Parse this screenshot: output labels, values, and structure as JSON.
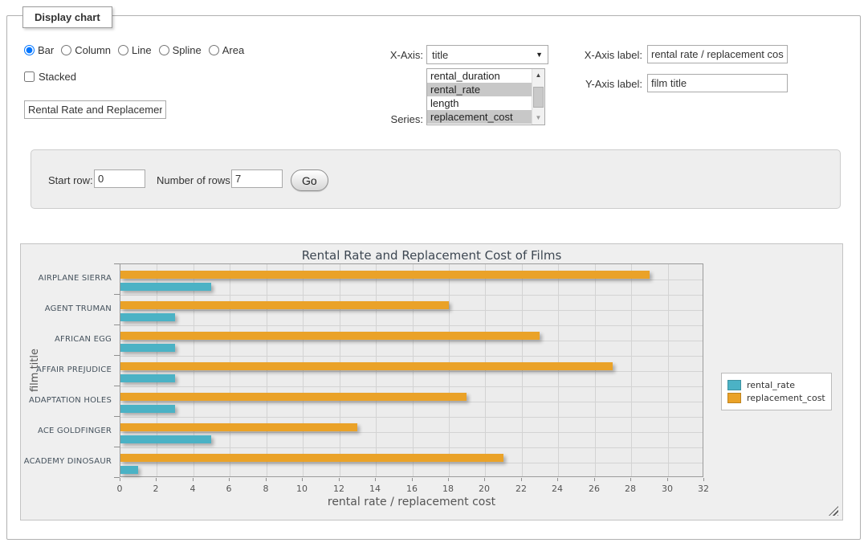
{
  "fieldset": {
    "legend": "Display chart"
  },
  "controls": {
    "chart_type": {
      "options": [
        "Bar",
        "Column",
        "Line",
        "Spline",
        "Area"
      ],
      "selected": "Bar"
    },
    "stacked": {
      "label": "Stacked",
      "checked": false
    },
    "title_input": {
      "value": "Rental Rate and Replacement Cost of Films"
    },
    "x_axis": {
      "label": "X-Axis:",
      "selected": "title"
    },
    "series": {
      "label": "Series:",
      "visible_options": [
        "rental_duration",
        "rental_rate",
        "length",
        "replacement_cost"
      ],
      "selected": [
        "rental_rate",
        "replacement_cost"
      ]
    },
    "x_axis_label": {
      "label": "X-Axis label:",
      "value": "rental rate / replacement cost"
    },
    "y_axis_label": {
      "label": "Y-Axis label:",
      "value": "film title"
    }
  },
  "row_controls": {
    "start_row": {
      "label": "Start row:",
      "value": "0"
    },
    "num_rows": {
      "label": "Number of rows:",
      "value": "7"
    },
    "go_label": "Go"
  },
  "chart_data": {
    "type": "bar",
    "orientation": "horizontal",
    "title": "Rental Rate and Replacement Cost of Films",
    "xlabel": "rental rate / replacement cost",
    "ylabel": "film title",
    "categories": [
      "AIRPLANE SIERRA",
      "AGENT TRUMAN",
      "AFRICAN EGG",
      "AFFAIR PREJUDICE",
      "ADAPTATION HOLES",
      "ACE GOLDFINGER",
      "ACADEMY DINOSAUR"
    ],
    "series": [
      {
        "name": "rental_rate",
        "color": "#4bb2c5",
        "values": [
          4.99,
          2.99,
          2.99,
          2.99,
          2.99,
          4.99,
          0.99
        ]
      },
      {
        "name": "replacement_cost",
        "color": "#eaa228",
        "values": [
          28.99,
          17.99,
          22.99,
          26.99,
          18.99,
          12.99,
          20.99
        ]
      }
    ],
    "xlim": [
      0,
      32
    ],
    "xticks": [
      0,
      2,
      4,
      6,
      8,
      10,
      12,
      14,
      16,
      18,
      20,
      22,
      24,
      26,
      28,
      30,
      32
    ],
    "grid": true,
    "legend_position": "right"
  }
}
